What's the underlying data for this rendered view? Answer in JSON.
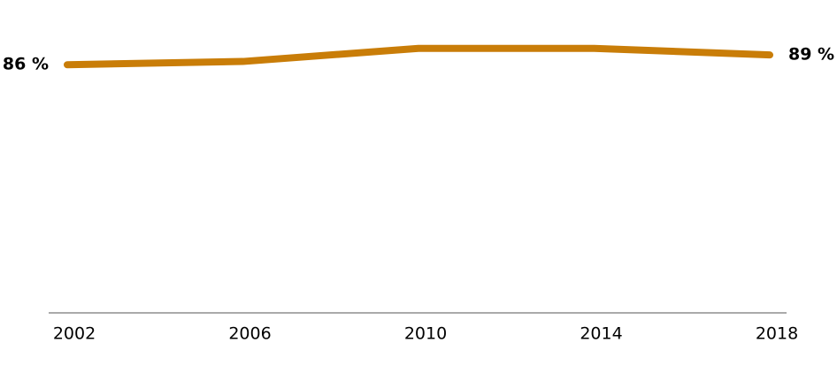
{
  "chart_data": {
    "type": "line",
    "x": [
      2002,
      2006,
      2010,
      2014,
      2018
    ],
    "xlim": [
      2002,
      2018
    ],
    "xticks": [
      2002,
      2006,
      2010,
      2014,
      2018
    ],
    "ylim": [
      10,
      95
    ],
    "series": [
      {
        "color": "#c97d08",
        "values": [
          86,
          87,
          91,
          91,
          89
        ],
        "value_labels": [
          "86 %",
          null,
          null,
          null,
          "89 %"
        ]
      }
    ]
  }
}
